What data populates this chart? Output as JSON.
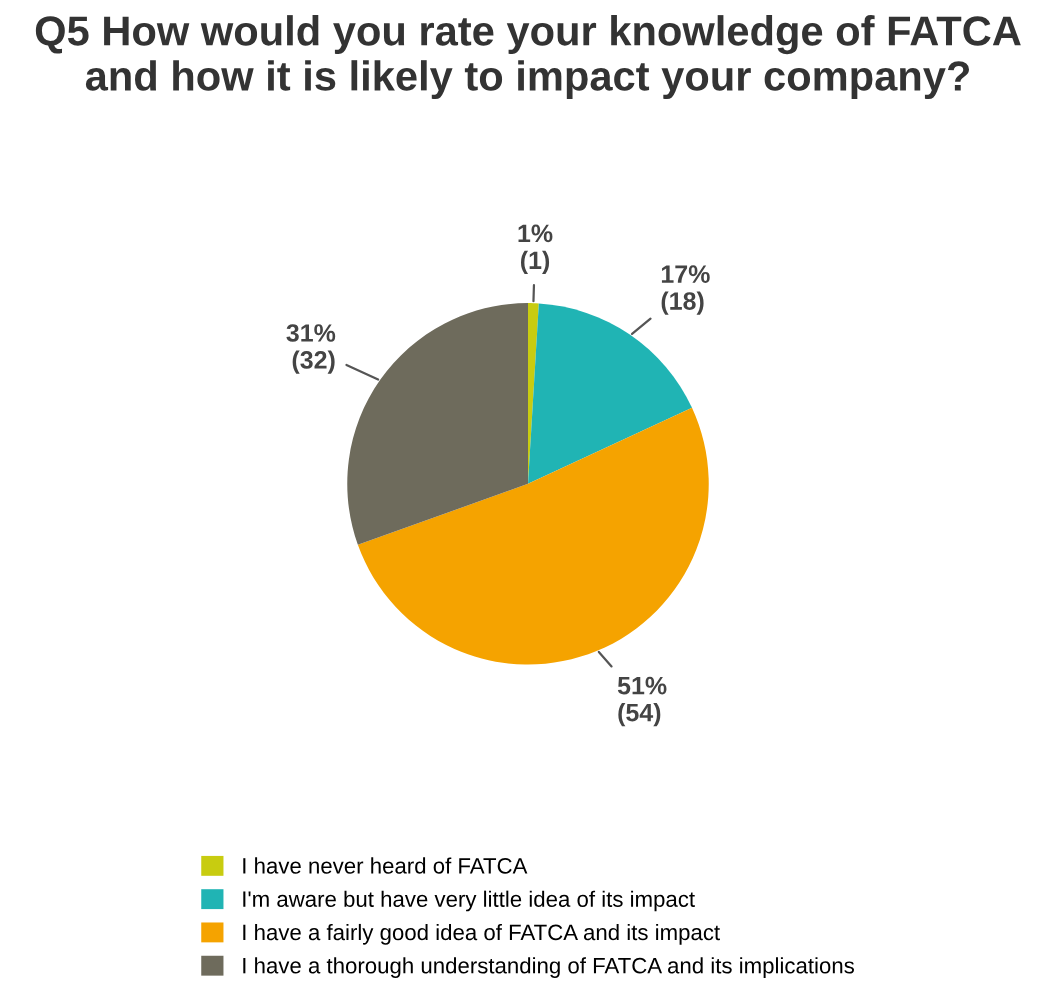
{
  "chart_data": {
    "type": "pie",
    "title": "Q5 How would you rate your knowledge of FATCA and how it is likely to impact your company?",
    "categories": [
      "I have never heard of FATCA",
      "I'm aware but have very little idea of its impact",
      "I have a fairly good idea of FATCA and its impact",
      "I have a thorough understanding of FATCA and its implications"
    ],
    "values": [
      1,
      18,
      54,
      32
    ],
    "value_labels": [
      "1%\n(1)",
      "17%\n(18)",
      "51%\n(54)",
      "31%\n(32)"
    ],
    "colors": [
      "#c8cc10",
      "#20b4b4",
      "#f5a300",
      "#6e6b5c"
    ],
    "legend": "bottom"
  }
}
